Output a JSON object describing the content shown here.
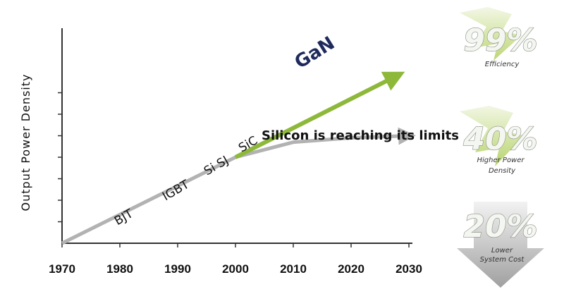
{
  "chart_data": {
    "type": "line",
    "ylabel": "Output Power Density",
    "x_ticks": [
      "1970",
      "1980",
      "1990",
      "2000",
      "2010",
      "2020",
      "2030"
    ],
    "xlim": [
      1970,
      2030
    ],
    "ylim": [
      0,
      10
    ],
    "grid": false,
    "series": [
      {
        "key": "silicon",
        "color": "#b2b2b2",
        "points": [
          [
            1970,
            0
          ],
          [
            2000,
            4.0
          ],
          [
            2010,
            4.7
          ],
          [
            2020,
            4.9
          ],
          [
            2030,
            5.0
          ]
        ]
      },
      {
        "key": "gan",
        "name": "GaN",
        "color": "#8db83a",
        "points": [
          [
            2000,
            4.0
          ],
          [
            2028,
            7.8
          ]
        ]
      }
    ],
    "technology_labels": [
      {
        "text": "BJT",
        "x": 1981,
        "y": 1.05
      },
      {
        "text": "IGBT",
        "x": 1990,
        "y": 2.3
      },
      {
        "text": "Si SJ",
        "x": 1997,
        "y": 3.45
      },
      {
        "text": "SiC",
        "x": 2002.5,
        "y": 4.45
      }
    ],
    "annotations": {
      "gan_label": "GaN",
      "silicon_limit": "Silicon is reaching its limits"
    }
  },
  "badges": [
    {
      "value": "99%",
      "caption": "Efficiency",
      "color": "#a7c94a"
    },
    {
      "value": "40%",
      "caption1": "Higher Power",
      "caption2": "Density",
      "color": "#a7c94a"
    },
    {
      "value": "20%",
      "caption1": "Lower",
      "caption2": "System Cost",
      "color": "#8f8f8f"
    }
  ]
}
